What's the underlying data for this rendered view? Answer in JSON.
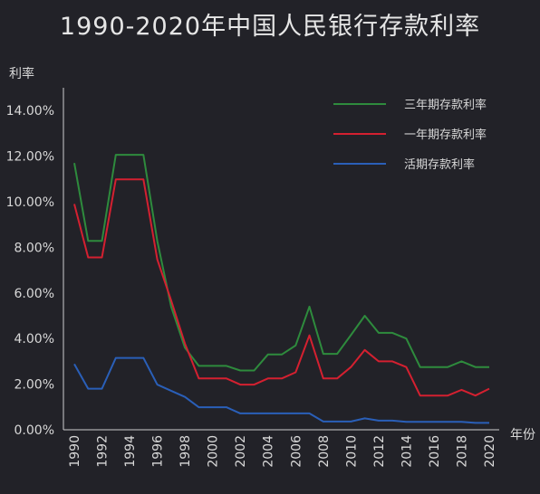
{
  "chart_data": {
    "type": "line",
    "title": "1990-2020年中国人民银行存款利率",
    "ylabel": "利率",
    "xlabel": "年份",
    "ylim": [
      0,
      15
    ],
    "xlim": [
      1990,
      2020
    ],
    "yticks": [
      "0.00%",
      "2.00%",
      "4.00%",
      "6.00%",
      "8.00%",
      "10.00%",
      "12.00%",
      "14.00%"
    ],
    "xticks": [
      "1990",
      "1992",
      "1994",
      "1996",
      "1998",
      "2000",
      "2002",
      "2004",
      "2006",
      "2008",
      "2010",
      "2012",
      "2014",
      "2016",
      "2018",
      "2020"
    ],
    "grid": false,
    "legend_position": "top-right",
    "series": [
      {
        "name": "三年期存款利率",
        "color": "#2e8b3d",
        "points": [
          [
            1990,
            11.7
          ],
          [
            1991,
            8.28
          ],
          [
            1992,
            8.28
          ],
          [
            1993,
            12.06
          ],
          [
            1994,
            12.06
          ],
          [
            1995,
            12.06
          ],
          [
            1996,
            8.28
          ],
          [
            1997,
            5.4
          ],
          [
            1998,
            3.6
          ],
          [
            1999,
            2.8
          ],
          [
            2000,
            2.8
          ],
          [
            2001,
            2.8
          ],
          [
            2002,
            2.6
          ],
          [
            2003,
            2.6
          ],
          [
            2004,
            3.3
          ],
          [
            2005,
            3.3
          ],
          [
            2006,
            3.7
          ],
          [
            2007,
            5.4
          ],
          [
            2008,
            3.33
          ],
          [
            2009,
            3.33
          ],
          [
            2010,
            4.15
          ],
          [
            2011,
            5.0
          ],
          [
            2012,
            4.25
          ],
          [
            2013,
            4.25
          ],
          [
            2014,
            4.0
          ],
          [
            2015,
            2.75
          ],
          [
            2016,
            2.75
          ],
          [
            2017,
            2.75
          ],
          [
            2018,
            3.0
          ],
          [
            2019,
            2.75
          ],
          [
            2020,
            2.75
          ]
        ]
      },
      {
        "name": "一年期存款利率",
        "color": "#d42030",
        "points": [
          [
            1990,
            9.9
          ],
          [
            1991,
            7.56
          ],
          [
            1992,
            7.56
          ],
          [
            1993,
            10.98
          ],
          [
            1994,
            10.98
          ],
          [
            1995,
            10.98
          ],
          [
            1996,
            7.47
          ],
          [
            1997,
            5.67
          ],
          [
            1998,
            3.78
          ],
          [
            1999,
            2.25
          ],
          [
            2000,
            2.25
          ],
          [
            2001,
            2.25
          ],
          [
            2002,
            1.98
          ],
          [
            2003,
            1.98
          ],
          [
            2004,
            2.25
          ],
          [
            2005,
            2.25
          ],
          [
            2006,
            2.52
          ],
          [
            2007,
            4.14
          ],
          [
            2008,
            2.25
          ],
          [
            2009,
            2.25
          ],
          [
            2010,
            2.75
          ],
          [
            2011,
            3.5
          ],
          [
            2012,
            3.0
          ],
          [
            2013,
            3.0
          ],
          [
            2014,
            2.75
          ],
          [
            2015,
            1.5
          ],
          [
            2016,
            1.5
          ],
          [
            2017,
            1.5
          ],
          [
            2018,
            1.75
          ],
          [
            2019,
            1.5
          ],
          [
            2020,
            1.8
          ]
        ]
      },
      {
        "name": "活期存款利率",
        "color": "#2a5fb8",
        "points": [
          [
            1990,
            2.88
          ],
          [
            1991,
            1.8
          ],
          [
            1992,
            1.8
          ],
          [
            1993,
            3.15
          ],
          [
            1994,
            3.15
          ],
          [
            1995,
            3.15
          ],
          [
            1996,
            1.98
          ],
          [
            1997,
            1.71
          ],
          [
            1998,
            1.44
          ],
          [
            1999,
            0.99
          ],
          [
            2000,
            0.99
          ],
          [
            2001,
            0.99
          ],
          [
            2002,
            0.72
          ],
          [
            2003,
            0.72
          ],
          [
            2004,
            0.72
          ],
          [
            2005,
            0.72
          ],
          [
            2006,
            0.72
          ],
          [
            2007,
            0.72
          ],
          [
            2008,
            0.36
          ],
          [
            2009,
            0.36
          ],
          [
            2010,
            0.36
          ],
          [
            2011,
            0.5
          ],
          [
            2012,
            0.4
          ],
          [
            2013,
            0.4
          ],
          [
            2014,
            0.35
          ],
          [
            2015,
            0.35
          ],
          [
            2016,
            0.35
          ],
          [
            2017,
            0.35
          ],
          [
            2018,
            0.35
          ],
          [
            2019,
            0.3
          ],
          [
            2020,
            0.3
          ]
        ]
      }
    ]
  }
}
